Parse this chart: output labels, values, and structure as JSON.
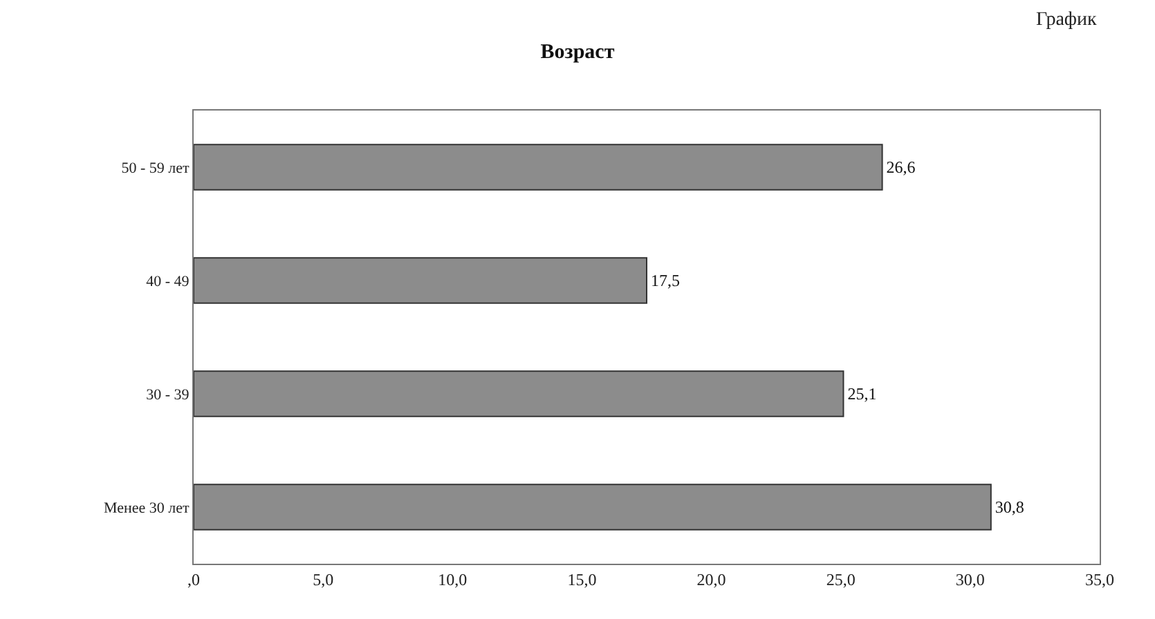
{
  "chart_data": {
    "type": "bar",
    "orientation": "horizontal",
    "title": "Возраст",
    "annotations": [
      "График"
    ],
    "categories": [
      "50 - 59 лет",
      "40 - 49",
      "30 - 39",
      "Менее 30 лет"
    ],
    "values": [
      26.6,
      17.5,
      25.1,
      30.8
    ],
    "value_labels": [
      "26,6",
      "17,5",
      "25,1",
      "30,8"
    ],
    "color": "#8c8c8c",
    "xlim": [
      0,
      35
    ],
    "xticks": [
      {
        "value": 0,
        "label": ",0"
      },
      {
        "value": 5,
        "label": "5,0"
      },
      {
        "value": 10,
        "label": "10,0"
      },
      {
        "value": 15,
        "label": "15,0"
      },
      {
        "value": 20,
        "label": "20,0"
      },
      {
        "value": 25,
        "label": "25,0"
      },
      {
        "value": 30,
        "label": "30,0"
      },
      {
        "value": 35,
        "label": "35,0"
      }
    ],
    "legend": false
  }
}
